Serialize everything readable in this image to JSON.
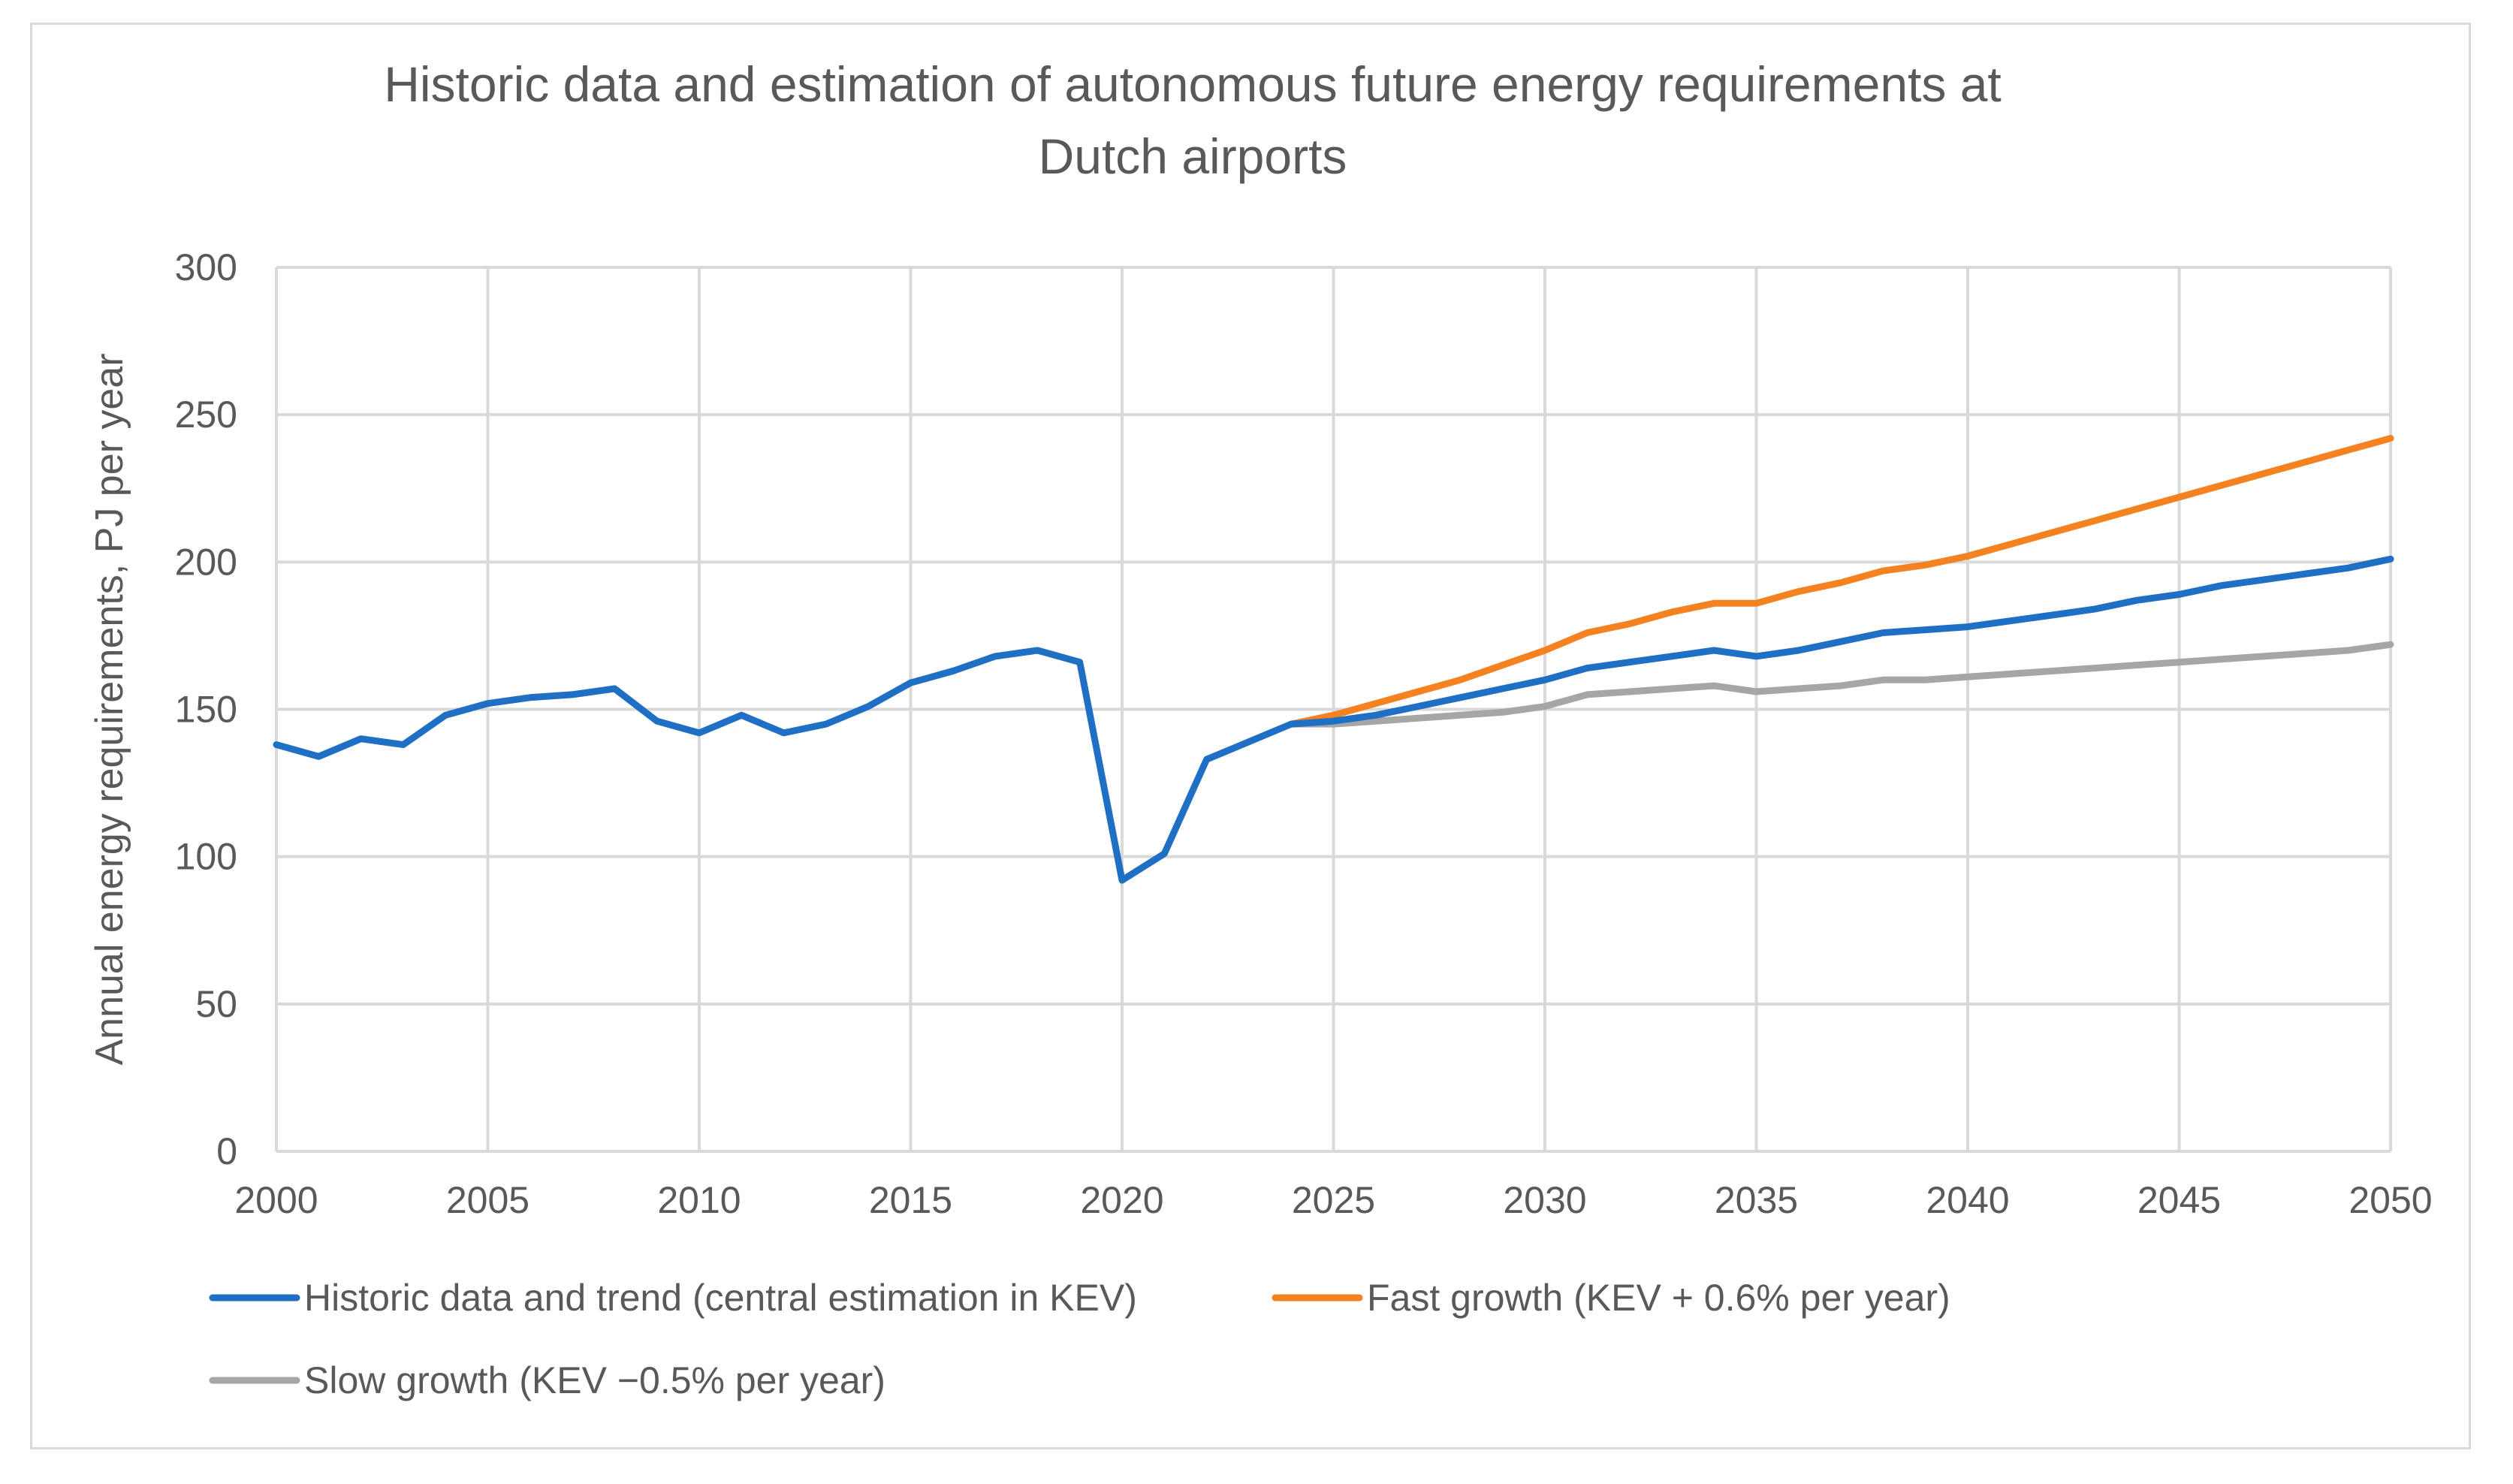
{
  "chart_data": {
    "type": "line",
    "title": "Historic data and estimation of autonomous future energy requirements at Dutch airports",
    "title_lines": [
      "Historic data and estimation of autonomous future energy requirements at",
      "Dutch airports"
    ],
    "xlabel": "",
    "ylabel": "Annual energy requirements, PJ per year",
    "xlim": [
      2000,
      2050
    ],
    "ylim": [
      0,
      300
    ],
    "x_ticks": [
      "2000",
      "2005",
      "2010",
      "2015",
      "2020",
      "2025",
      "2030",
      "2035",
      "2040",
      "2045",
      "2050"
    ],
    "x_tick_values": [
      2000,
      2005,
      2010,
      2015,
      2020,
      2025,
      2030,
      2035,
      2040,
      2045,
      2050
    ],
    "y_ticks": [
      "0",
      "50",
      "100",
      "150",
      "200",
      "250",
      "300"
    ],
    "y_tick_values": [
      0,
      50,
      100,
      150,
      200,
      250,
      300
    ],
    "grid": true,
    "legend_position": "bottom",
    "series": [
      {
        "name": "Historic data and trend (central estimation in KEV)",
        "color": "#1f6fc5",
        "x": [
          2000,
          2001,
          2002,
          2003,
          2004,
          2005,
          2006,
          2007,
          2008,
          2009,
          2010,
          2011,
          2012,
          2013,
          2014,
          2015,
          2016,
          2017,
          2018,
          2019,
          2020,
          2021,
          2022,
          2023,
          2024,
          2025,
          2026,
          2027,
          2028,
          2029,
          2030,
          2031,
          2032,
          2033,
          2034,
          2035,
          2036,
          2037,
          2038,
          2039,
          2040,
          2041,
          2042,
          2043,
          2044,
          2045,
          2046,
          2047,
          2048,
          2049,
          2050
        ],
        "values": [
          138,
          134,
          140,
          138,
          148,
          152,
          154,
          155,
          157,
          146,
          142,
          148,
          142,
          145,
          151,
          159,
          163,
          168,
          170,
          166,
          92,
          101,
          133,
          139,
          145,
          146,
          148,
          151,
          154,
          157,
          160,
          164,
          166,
          168,
          170,
          168,
          170,
          173,
          176,
          177,
          178,
          180,
          182,
          184,
          187,
          189,
          192,
          194,
          196,
          198,
          201
        ]
      },
      {
        "name": "Fast growth (KEV + 0.6% per year)",
        "color": "#f58220",
        "x": [
          2024,
          2025,
          2026,
          2027,
          2028,
          2029,
          2030,
          2031,
          2032,
          2033,
          2034,
          2035,
          2036,
          2037,
          2038,
          2039,
          2040,
          2041,
          2042,
          2043,
          2044,
          2045,
          2046,
          2047,
          2048,
          2049,
          2050
        ],
        "values": [
          145,
          148,
          152,
          156,
          160,
          165,
          170,
          176,
          179,
          183,
          186,
          186,
          190,
          193,
          197,
          199,
          202,
          206,
          210,
          214,
          218,
          222,
          226,
          230,
          234,
          238,
          242
        ]
      },
      {
        "name": "Slow growth (KEV −0.5% per year)",
        "color": "#a6a6a6",
        "x": [
          2024,
          2025,
          2026,
          2027,
          2028,
          2029,
          2030,
          2031,
          2032,
          2033,
          2034,
          2035,
          2036,
          2037,
          2038,
          2039,
          2040,
          2041,
          2042,
          2043,
          2044,
          2045,
          2046,
          2047,
          2048,
          2049,
          2050
        ],
        "values": [
          145,
          145,
          146,
          147,
          148,
          149,
          151,
          155,
          156,
          157,
          158,
          156,
          157,
          158,
          160,
          160,
          161,
          162,
          163,
          164,
          165,
          166,
          167,
          168,
          169,
          170,
          172
        ]
      }
    ]
  }
}
